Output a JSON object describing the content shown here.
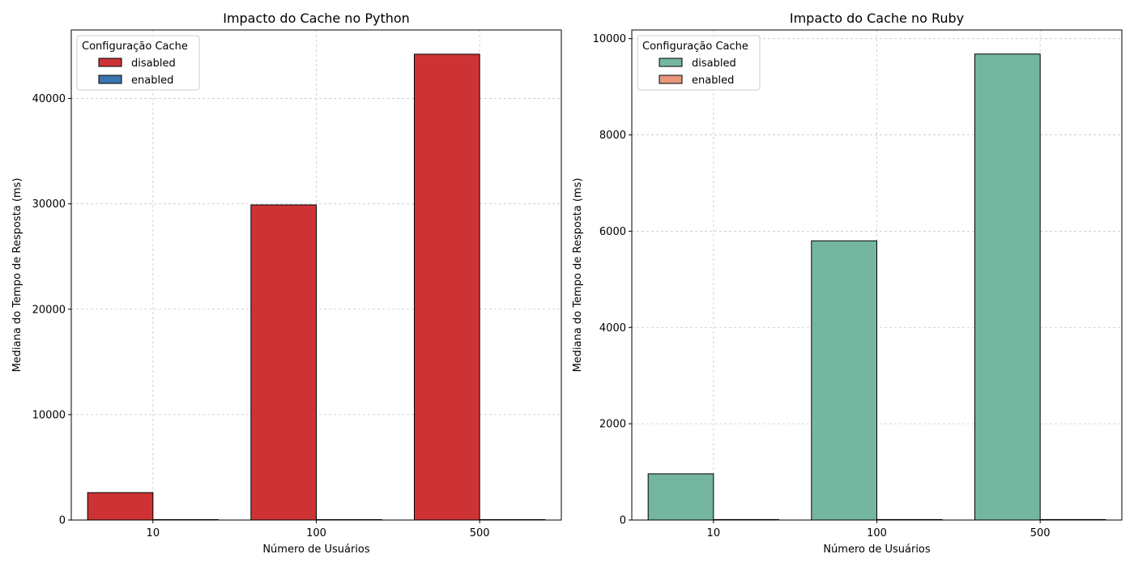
{
  "chart_data": [
    {
      "type": "bar",
      "title": "Impacto do Cache no Python",
      "xlabel": "Número de Usuários",
      "ylabel": "Mediana do Tempo de Resposta (ms)",
      "categories": [
        "10",
        "100",
        "500"
      ],
      "ylim": [
        0,
        46500
      ],
      "yticks": [
        0,
        10000,
        20000,
        30000,
        40000
      ],
      "grid": true,
      "legend": {
        "title": "Configuração Cache",
        "placement": "upper-left"
      },
      "series": [
        {
          "name": "disabled",
          "color": "#cd3335",
          "values": [
            2600,
            29900,
            44200
          ]
        },
        {
          "name": "enabled",
          "color": "#3b75af",
          "values": [
            40,
            40,
            40
          ]
        }
      ]
    },
    {
      "type": "bar",
      "title": "Impacto do Cache no Ruby",
      "xlabel": "Número de Usuários",
      "ylabel": "Mediana do Tempo de Resposta (ms)",
      "categories": [
        "10",
        "100",
        "500"
      ],
      "ylim": [
        0,
        10180
      ],
      "yticks": [
        0,
        2000,
        4000,
        6000,
        8000,
        10000
      ],
      "grid": true,
      "legend": {
        "title": "Configuração Cache",
        "placement": "upper-left"
      },
      "series": [
        {
          "name": "disabled",
          "color": "#75b6a1",
          "values": [
            960,
            5800,
            9680
          ]
        },
        {
          "name": "enabled",
          "color": "#e8977c",
          "values": [
            10,
            10,
            10
          ]
        }
      ]
    }
  ]
}
